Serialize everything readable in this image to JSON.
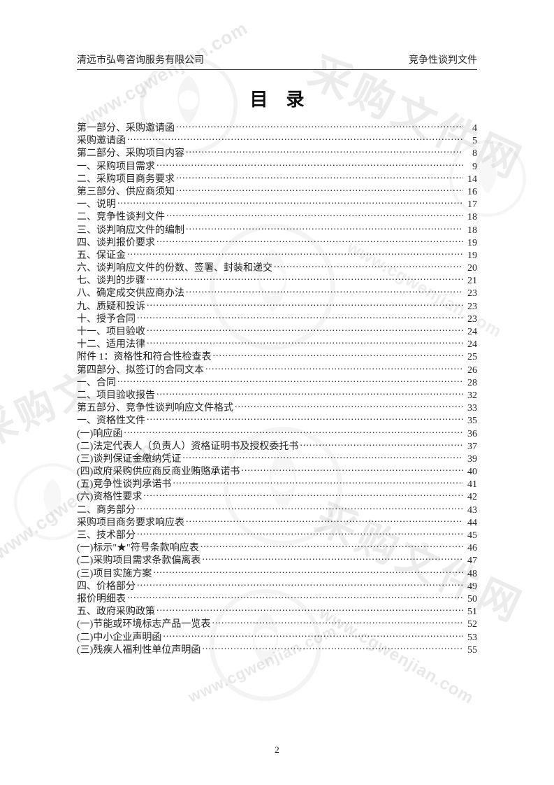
{
  "header": {
    "left": "清远市弘粤咨询服务有限公司",
    "right": "竞争性谈判文件"
  },
  "title": "目录",
  "page_number": "2",
  "colors": {
    "text": "#222222",
    "rule": "#333333",
    "background": "#ffffff",
    "watermark": "#e8e8e8"
  },
  "typography": {
    "body_fontsize_pt": 10.5,
    "title_fontsize_pt": 20,
    "font_family": "SimSun"
  },
  "toc": [
    {
      "label": "第一部分、采购邀请函",
      "page": "4"
    },
    {
      "label": "采购邀请函",
      "page": "5"
    },
    {
      "label": "第二部分、采购项目内容",
      "page": "8"
    },
    {
      "label": "一、采购项目需求",
      "page": "9"
    },
    {
      "label": "二、采购项目商务要求",
      "page": "14"
    },
    {
      "label": "第三部分、供应商须知",
      "page": "16"
    },
    {
      "label": "一、说明",
      "page": "17"
    },
    {
      "label": "二、竞争性谈判文件",
      "page": "18"
    },
    {
      "label": "三、谈判响应文件的编制",
      "page": "18"
    },
    {
      "label": "四、谈判报价要求",
      "page": "19"
    },
    {
      "label": "五、保证金",
      "page": "19"
    },
    {
      "label": "六、谈判响应文件的份数、签署、封装和递交",
      "page": "20"
    },
    {
      "label": "七、谈判的步骤",
      "page": "21"
    },
    {
      "label": "八、确定成交供应商办法",
      "page": "23"
    },
    {
      "label": "九、质疑和投诉",
      "page": "23"
    },
    {
      "label": "十、授予合同",
      "page": "23"
    },
    {
      "label": "十一、项目验收",
      "page": "24"
    },
    {
      "label": "十二、适用法律",
      "page": "24"
    },
    {
      "label": "附件 1：资格性和符合性检查表",
      "page": "25"
    },
    {
      "label": "第四部分、拟签订的合同文本",
      "page": "26"
    },
    {
      "label": "一、合同",
      "page": "28"
    },
    {
      "label": "二、项目验收报告",
      "page": "32"
    },
    {
      "label": "第五部分、竞争性谈判响应文件格式",
      "page": "33"
    },
    {
      "label": "一、资格性文件",
      "page": "35"
    },
    {
      "label": "(一)响应函",
      "page": "36"
    },
    {
      "label": "(二)法定代表人（负责人）资格证明书及授权委托书",
      "page": "37"
    },
    {
      "label": "(三)谈判保证金缴纳凭证",
      "page": "39"
    },
    {
      "label": "(四)政府采购供应商反商业贿赂承诺书",
      "page": "40"
    },
    {
      "label": "(五)竞争性谈判承诺书",
      "page": "41"
    },
    {
      "label": "(六)资格性要求",
      "page": "42"
    },
    {
      "label": "二、商务部分",
      "page": "43"
    },
    {
      "label": "采购项目商务要求响应表",
      "page": "44"
    },
    {
      "label": "三、技术部分",
      "page": "45"
    },
    {
      "label": "(一)标示\"★\"符号条款响应表",
      "page": "46"
    },
    {
      "label": "(二)采购项目需求条款偏离表",
      "page": "47"
    },
    {
      "label": "(三)项目实施方案",
      "page": "48"
    },
    {
      "label": "四、价格部分",
      "page": "49"
    },
    {
      "label": "报价明细表",
      "page": "50"
    },
    {
      "label": "五、政府采购政策",
      "page": "51"
    },
    {
      "label": "(一)节能或环境标志产品一览表",
      "page": "52"
    },
    {
      "label": "(二)中小企业声明函",
      "page": "53"
    },
    {
      "label": "(三)残疾人福利性单位声明函",
      "page": "55"
    }
  ],
  "watermarks": {
    "url_text": "www.cgwenjian.com",
    "brand_text": "采购文件网",
    "short_text": "采购文"
  }
}
